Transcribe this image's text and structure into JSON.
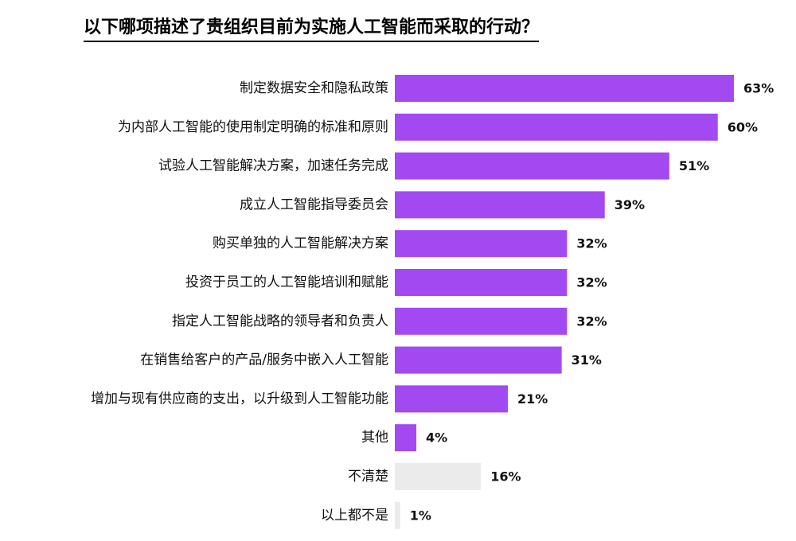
{
  "chart_data": {
    "type": "bar",
    "orientation": "horizontal",
    "title": "以下哪项描述了贵组织目前为实施人工智能而采取的行动？",
    "xlim": [
      0,
      63
    ],
    "grid": false,
    "value_suffix": "%",
    "categories": [
      "制定数据安全和隐私政策",
      "为内部人工智能的使用制定明确的标准和原则",
      "试验人工智能解决方案，加速任务完成",
      "成立人工智能指导委员会",
      "购买单独的人工智能解决方案",
      "投资于员工的人工智能培训和赋能",
      "指定人工智能战略的领导者和负责人",
      "在销售给客户的产品/服务中嵌入人工智能",
      "增加与现有供应商的支出，以升级到人工智能功能",
      "其他",
      "不清楚",
      "以上都不是"
    ],
    "values": [
      63,
      60,
      51,
      39,
      32,
      32,
      32,
      31,
      21,
      4,
      16,
      1
    ],
    "value_labels": [
      "63%",
      "60%",
      "51%",
      "39%",
      "32%",
      "32%",
      "32%",
      "31%",
      "21%",
      "4%",
      "16%",
      "1%"
    ],
    "colors": [
      "#a349f2",
      "#a349f2",
      "#a349f2",
      "#a349f2",
      "#a349f2",
      "#a349f2",
      "#a349f2",
      "#a349f2",
      "#a349f2",
      "#a349f2",
      "#ebebeb",
      "#ebebeb"
    ]
  }
}
